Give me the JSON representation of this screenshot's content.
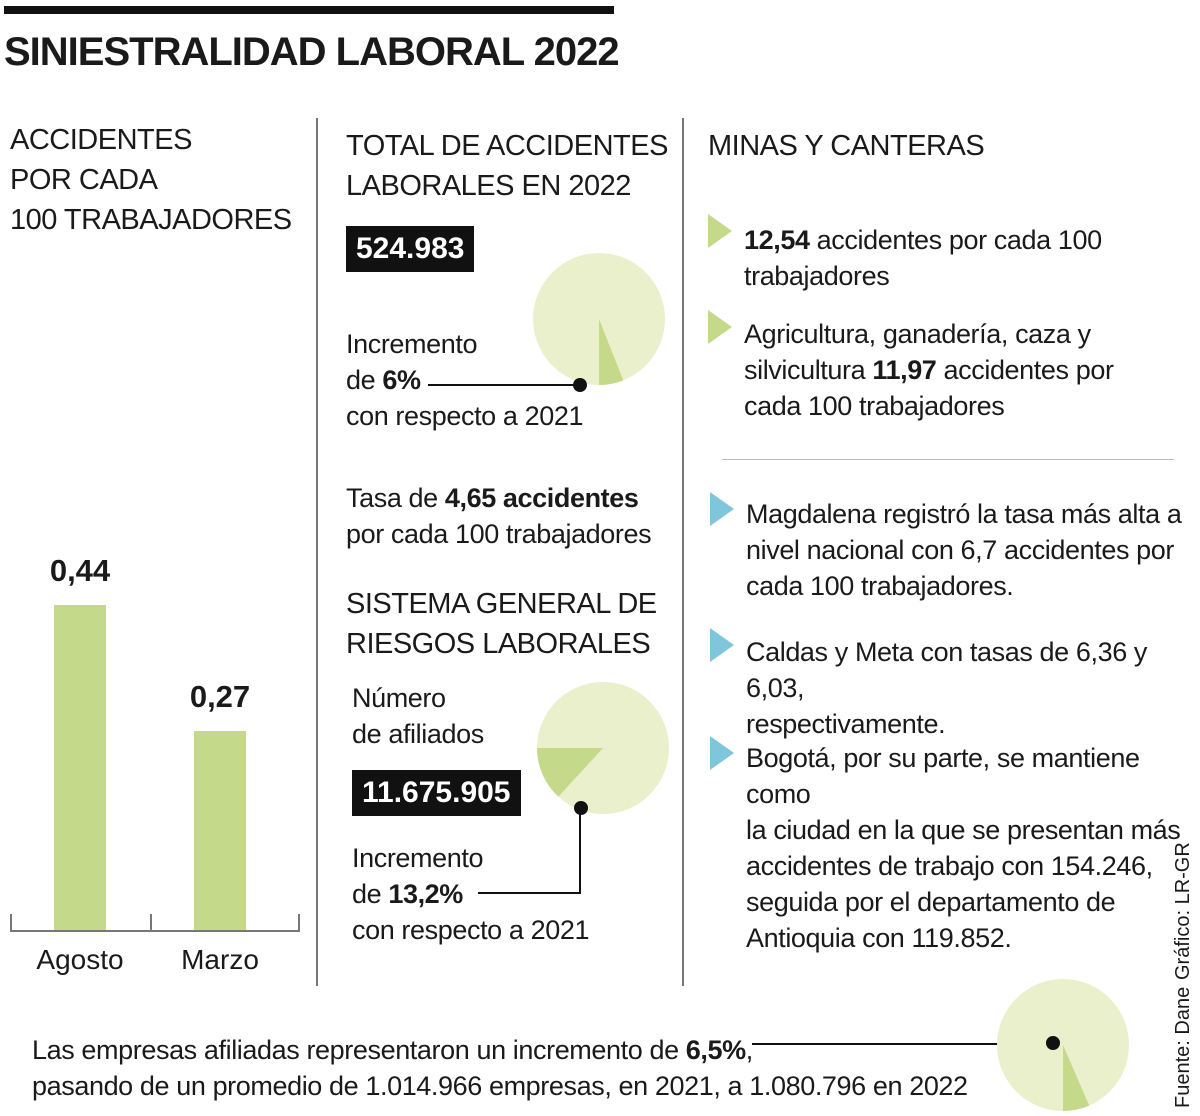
{
  "title": "SINIESTRALIDAD LABORAL 2022",
  "left": {
    "heading": [
      "ACCIDENTES",
      "POR CADA",
      "100 TRABAJADORES"
    ]
  },
  "chart_data": {
    "type": "bar",
    "title": "ACCIDENTES POR CADA 100 TRABAJADORES",
    "categories": [
      "Agosto",
      "Marzo"
    ],
    "values": [
      0.44,
      0.27
    ],
    "value_labels": [
      "0,44",
      "0,27"
    ],
    "ylim": [
      0,
      0.5
    ],
    "grid": false
  },
  "middle": {
    "total_heading": [
      "TOTAL DE ACCIDENTES",
      "LABORALES EN 2022"
    ],
    "total_value": "524.983",
    "increment1": {
      "l1": "Incremento",
      "l2a": "de ",
      "l2b": "6%",
      "l3": "con respecto a 2021",
      "percent": 6
    },
    "tasa": {
      "a": "Tasa de ",
      "b": "4,65 accidentes",
      "c": "por cada 100 trabajadores"
    },
    "sgrl_heading": [
      "SISTEMA GENERAL DE",
      "RIESGOS LABORALES"
    ],
    "afiliados_label": [
      "Número",
      "de afiliados"
    ],
    "afiliados_value": "11.675.905",
    "increment2": {
      "l1": "Incremento",
      "l2a": "de ",
      "l2b": "13,2%",
      "l3": "con respecto a 2021",
      "percent": 13.2
    }
  },
  "right": {
    "heading": "MINAS Y CANTERAS",
    "item1": {
      "a": "12,54",
      "b": " accidentes por cada 100",
      "c": "trabajadores"
    },
    "item2": {
      "a": "Agricultura, ganadería, caza y",
      "b": "silvicultura ",
      "c": "11,97",
      "d": " accidentes por",
      "e": "cada 100 trabajadores"
    },
    "item3": [
      "Magdalena registró la tasa más alta a",
      "nivel nacional con 6,7 accidentes por",
      "cada 100 trabajadores."
    ],
    "item4": [
      "Caldas y Meta con tasas de 6,36 y 6,03,",
      "respectivamente."
    ],
    "item5": [
      "Bogotá, por su parte, se mantiene como",
      "la ciudad en la que se presentan más",
      "accidentes de trabajo con 154.246,",
      "seguida por el departamento de",
      "Antioquia con 119.852."
    ]
  },
  "footer": {
    "l1a": "Las empresas afiliadas representaron un incremento de ",
    "l1b": "6,5%",
    "l1c": ",",
    "l2": "pasando de un promedio de 1.014.966 empresas, en 2021, a 1.080.796 en 2022",
    "percent": 6.5
  },
  "credits": {
    "grafico": "Gráfico: LR-GR",
    "fuente": "Fuente: Dane"
  },
  "colors": {
    "bar": "#c5d98a",
    "pie_bg": "#eaf0cb",
    "pie_slice": "#c5d98a",
    "bullet_green": "#c5d98a",
    "bullet_blue": "#7fc6dc"
  }
}
